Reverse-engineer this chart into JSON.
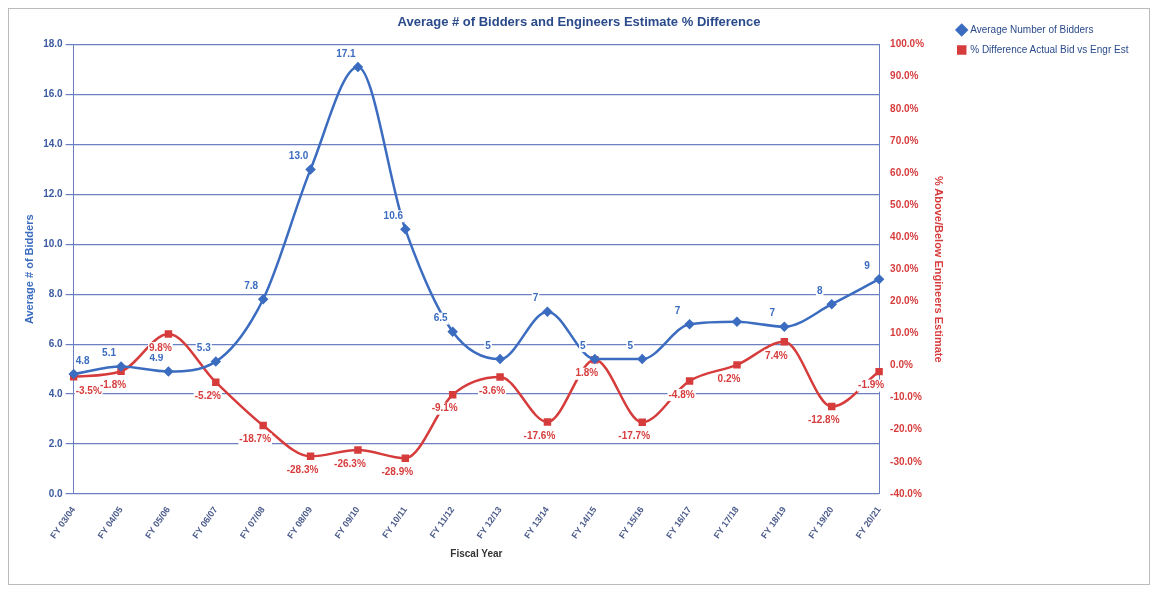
{
  "chart_data": {
    "type": "line",
    "title": "Average # of Bidders and Engineers Estimate % Difference",
    "xlabel": "Fiscal Year",
    "ylabel": "Average # of Bidders",
    "y2label": "% Above/Below Engineers Estimate",
    "categories": [
      "FY 03/04",
      "FY 04/05",
      "FY 05/06",
      "FY 06/07",
      "FY 07/08",
      "FY 08/09",
      "FY 09/10",
      "FY 10/11",
      "FY 11/12",
      "FY 12/13",
      "FY 13/14",
      "FY 14/15",
      "FY 15/16",
      "FY 16/17",
      "FY 17/18",
      "FY 18/19",
      "FY 19/20",
      "FY 20/21"
    ],
    "series": [
      {
        "name": "Average Number of Bidders",
        "color": "#3b6cc0",
        "marker": "diamond",
        "values": [
          4.8,
          5.1,
          4.9,
          5.3,
          7.8,
          13.0,
          17.1,
          10.6,
          6.5,
          5.4,
          7.3,
          5.4,
          5.4,
          6.8,
          6.9,
          6.7,
          7.6,
          8.6
        ],
        "value_labels": [
          "4.8",
          "5.1",
          "4.9",
          "5.3",
          "7.8",
          "13.0",
          "17.1",
          "10.6",
          "6.5",
          "5",
          "7",
          "5",
          "5",
          "7",
          null,
          "7",
          "8",
          "9"
        ]
      },
      {
        "name": "% Difference Actual Bid vs Engr Est",
        "color": "#d63c3c",
        "marker": "square",
        "axis": "y2",
        "values": [
          -3.5,
          -1.8,
          9.8,
          -5.2,
          -18.7,
          -28.3,
          -26.3,
          -28.9,
          -9.1,
          -3.6,
          -17.6,
          1.8,
          -17.7,
          -4.8,
          0.2,
          7.4,
          -12.8,
          -1.9
        ],
        "value_labels": [
          "-3.5%",
          "-1.8%",
          "9.8%",
          "-5.2%",
          "-18.7%",
          "-28.3%",
          "-26.3%",
          "-28.9%",
          "-9.1%",
          "-3.6%",
          "-17.6%",
          "1.8%",
          "-17.7%",
          "-4.8%",
          "0.2%",
          "7.4%",
          "-12.8%",
          "-1.9%"
        ]
      }
    ],
    "ylim": [
      0,
      18
    ],
    "yticks": [
      {
        "value": 0,
        "label": "0.0"
      },
      {
        "value": 2,
        "label": "2.0"
      },
      {
        "value": 4,
        "label": "4.0"
      },
      {
        "value": 6,
        "label": "6.0"
      },
      {
        "value": 8,
        "label": "8.0"
      },
      {
        "value": 10,
        "label": "10.0"
      },
      {
        "value": 12,
        "label": "12.0"
      },
      {
        "value": 14,
        "label": "14.0"
      },
      {
        "value": 16,
        "label": "16.0"
      },
      {
        "value": 18,
        "label": "18.0"
      }
    ],
    "y2lim": [
      -40,
      100
    ],
    "y2ticks": [
      {
        "value": -40,
        "label": "-40.0%"
      },
      {
        "value": -30,
        "label": "-30.0%"
      },
      {
        "value": -20,
        "label": "-20.0%"
      },
      {
        "value": -10,
        "label": "-10.0%"
      },
      {
        "value": 0,
        "label": "0.0%"
      },
      {
        "value": 10,
        "label": "10.0%"
      },
      {
        "value": 20,
        "label": "20.0%"
      },
      {
        "value": 30,
        "label": "30.0%"
      },
      {
        "value": 40,
        "label": "40.0%"
      },
      {
        "value": 50,
        "label": "50.0%"
      },
      {
        "value": 60,
        "label": "60.0%"
      },
      {
        "value": 70,
        "label": "70.0%"
      },
      {
        "value": 80,
        "label": "80.0%"
      },
      {
        "value": 90,
        "label": "90.0%"
      },
      {
        "value": 100,
        "label": "100.0%"
      }
    ],
    "grid": "y",
    "legend": "top right"
  }
}
